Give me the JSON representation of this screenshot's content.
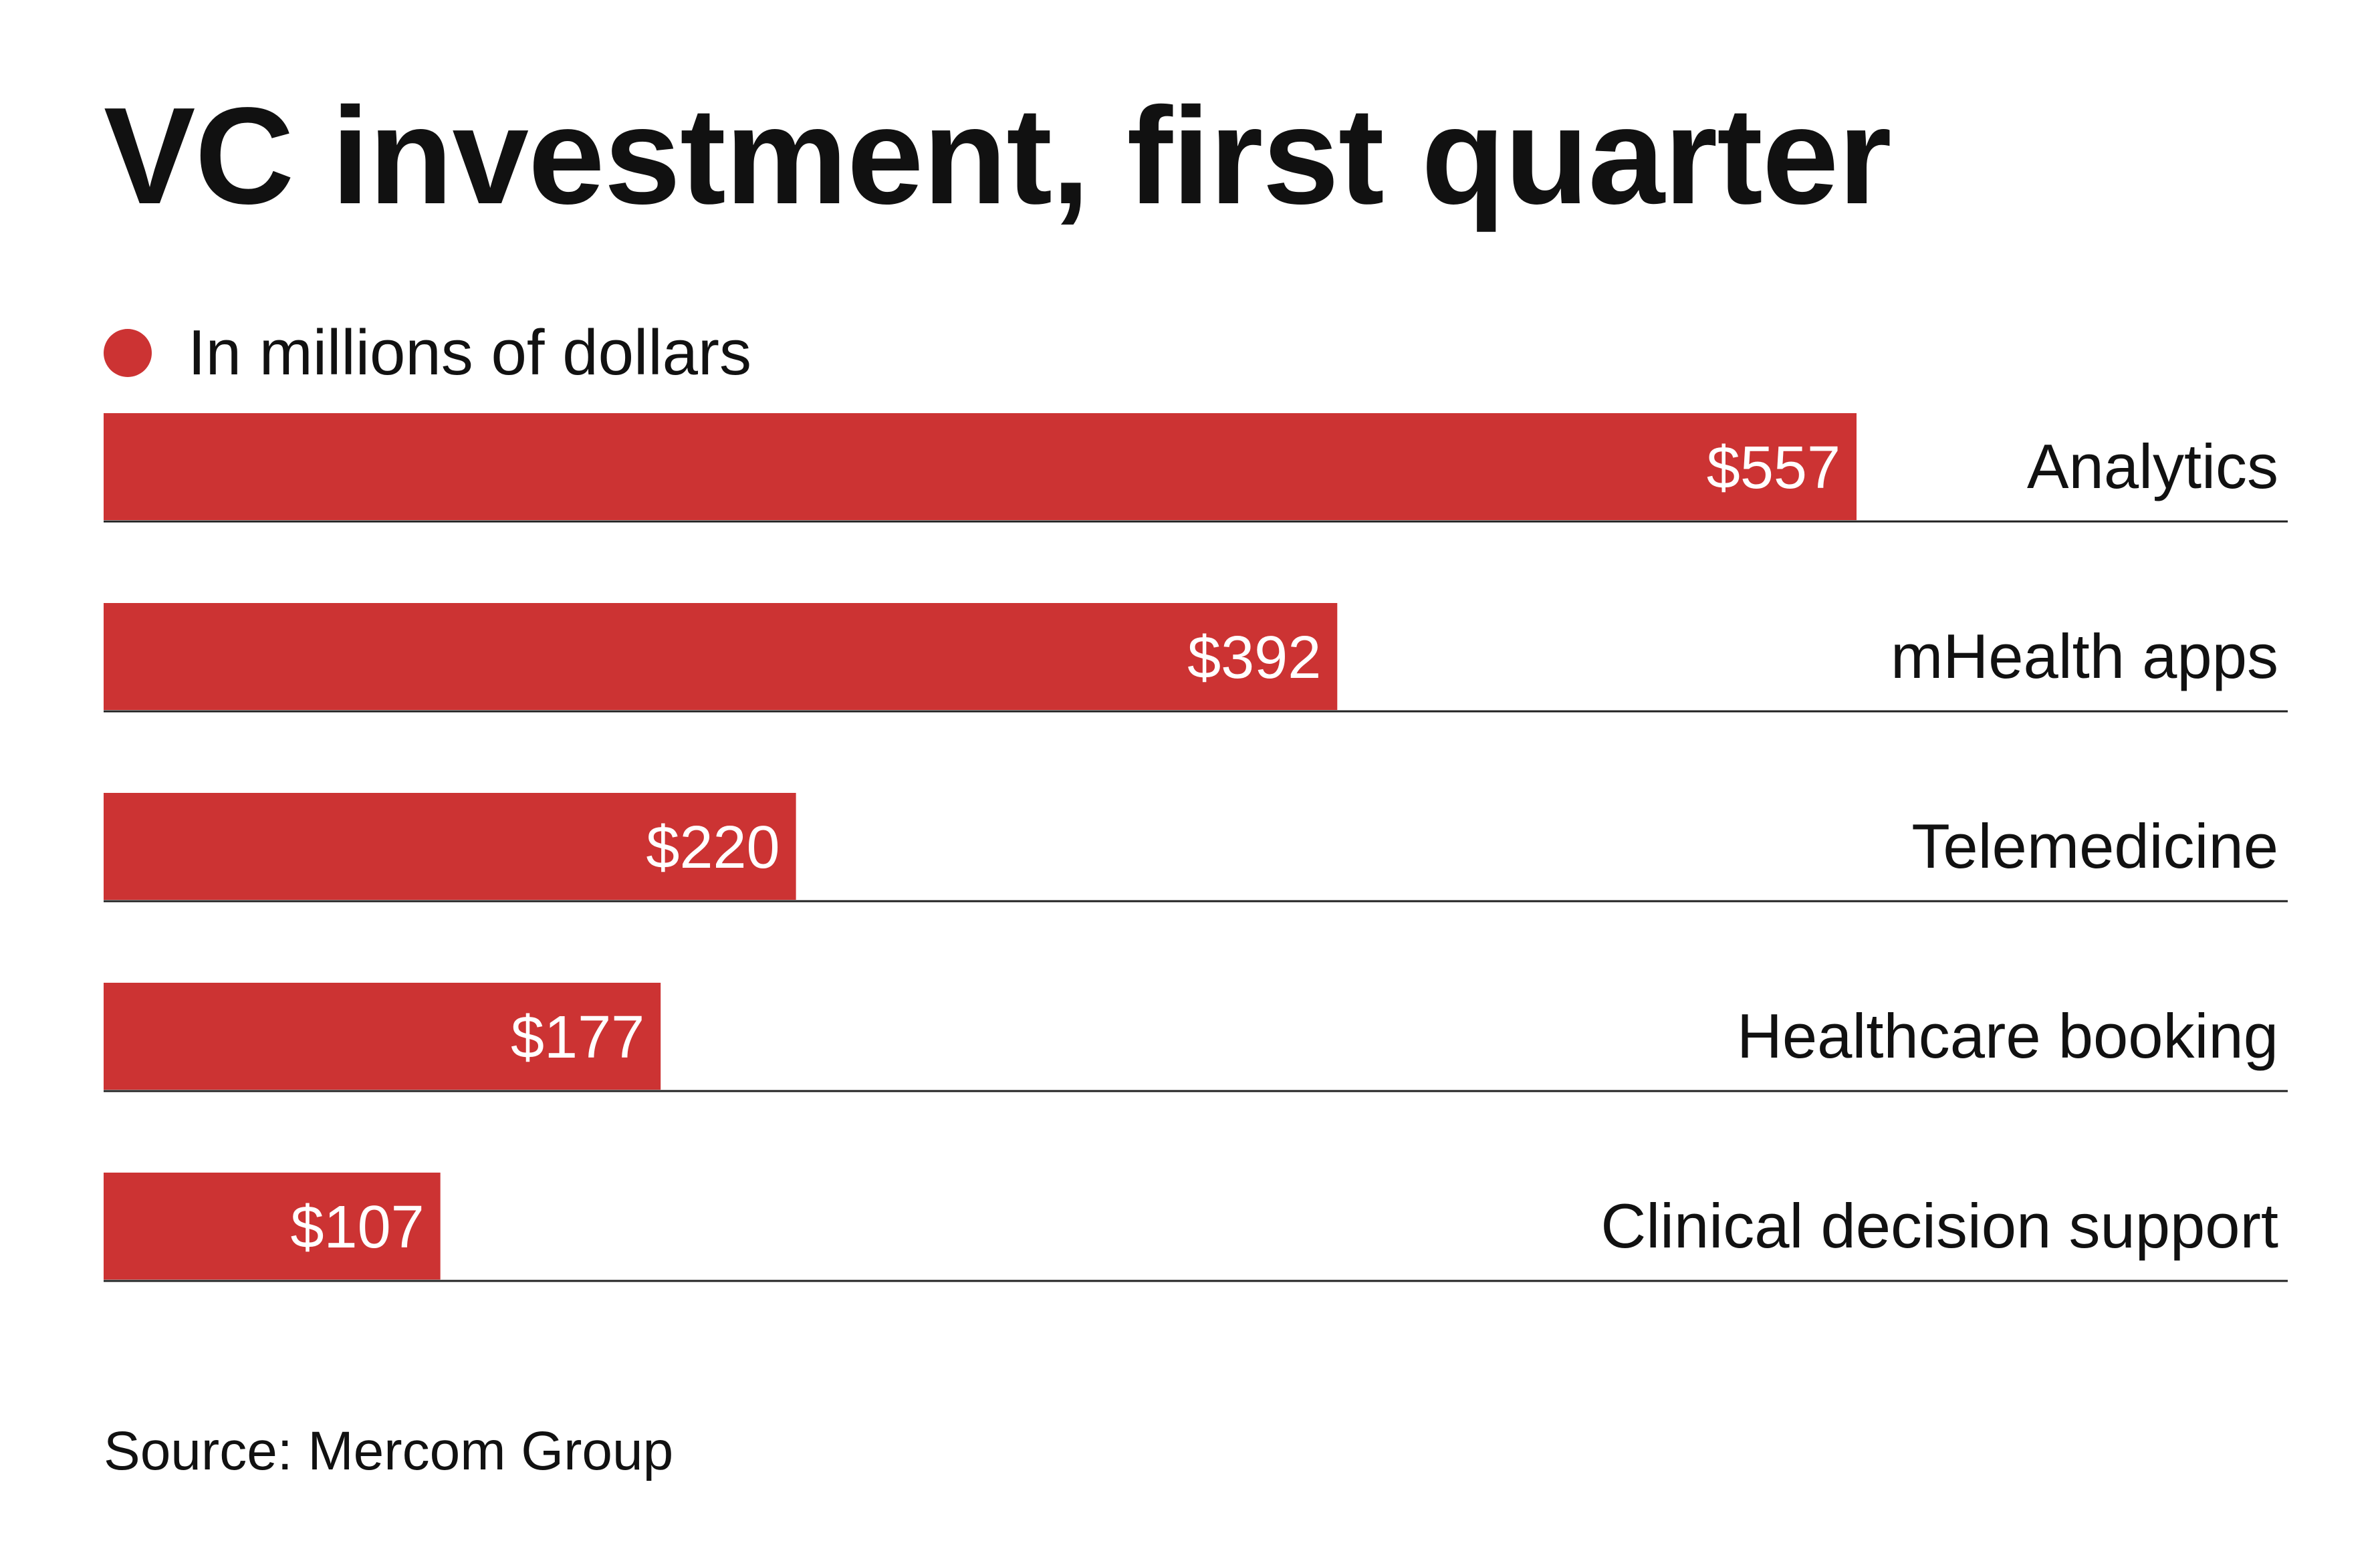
{
  "chart_data": {
    "type": "bar",
    "orientation": "horizontal",
    "title": "VC investment, first quarter",
    "legend": {
      "label": "In millions of dollars",
      "color": "#cc3333",
      "placement": "top-left"
    },
    "categories": [
      "Analytics",
      "mHealth apps",
      "Telemedicine",
      "Healthcare booking",
      "Clinical decision support"
    ],
    "values": [
      557,
      392,
      220,
      177,
      107
    ],
    "value_labels": [
      "$557",
      "$392",
      "$220",
      "$177",
      "$107"
    ],
    "xlim": [
      0,
      557
    ],
    "grid": false,
    "bar_color": "#cc3333",
    "baseline_color": "#222222",
    "xlabel": "",
    "ylabel": "",
    "source": "Source: Mercom Group"
  }
}
